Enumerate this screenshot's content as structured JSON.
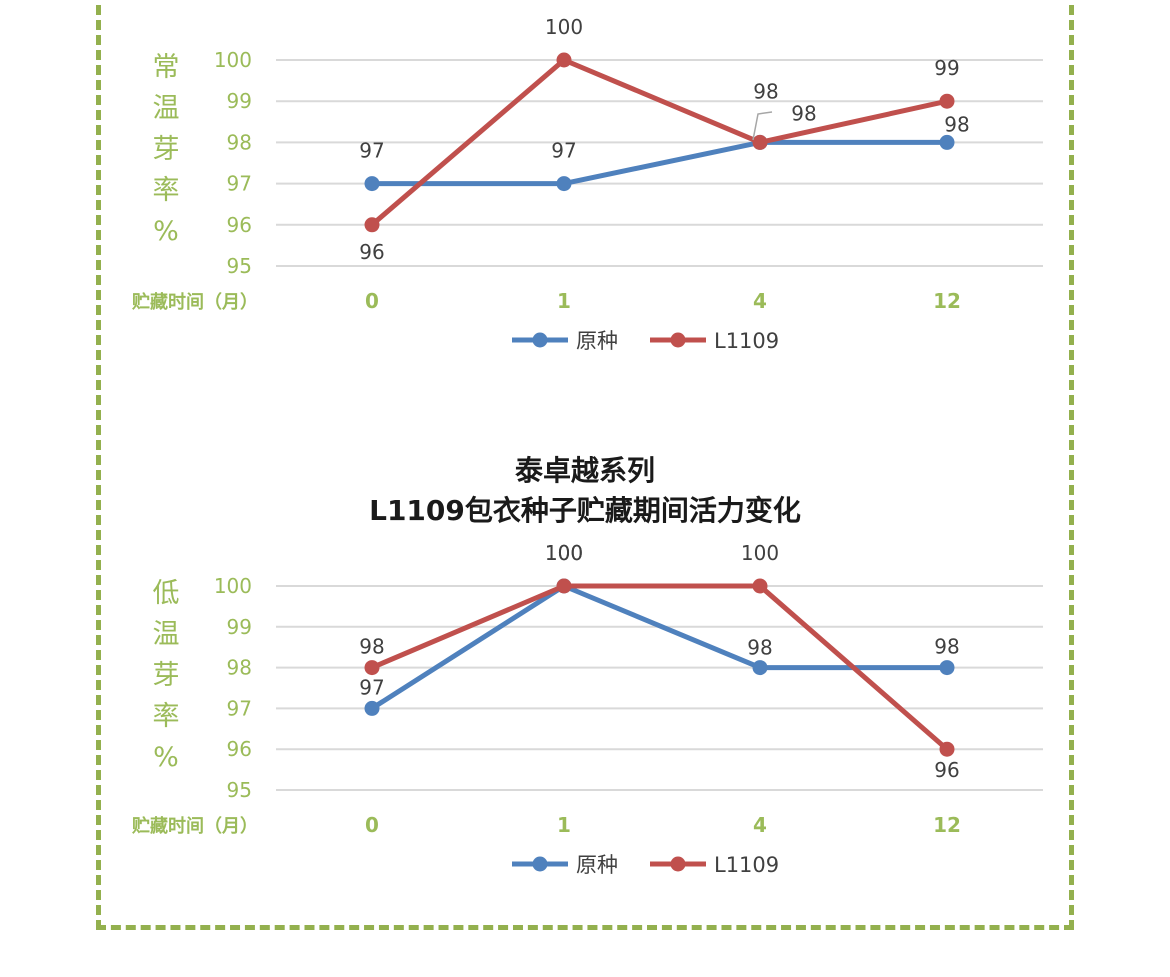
{
  "chart_data": [
    {
      "type": "line",
      "title": "",
      "ylabel": "常温芽率%",
      "xlabel": "贮藏时间（月）",
      "categories": [
        "0",
        "1",
        "4",
        "12"
      ],
      "ylim": [
        95,
        100
      ],
      "yticks": [
        95,
        96,
        97,
        98,
        99,
        100
      ],
      "grid": true,
      "legend": "bottom",
      "series": [
        {
          "name": "原种",
          "color": "#4f81bd",
          "values": [
            97,
            97,
            98,
            98
          ]
        },
        {
          "name": "L1109",
          "color": "#c0504d",
          "values": [
            96,
            100,
            98,
            99
          ]
        }
      ]
    },
    {
      "type": "line",
      "title": "泰卓越系列",
      "subtitle": "L1109包衣种子贮藏期间活力变化",
      "ylabel": "低温芽率%",
      "xlabel": "贮藏时间（月）",
      "categories": [
        "0",
        "1",
        "4",
        "12"
      ],
      "ylim": [
        95,
        100
      ],
      "yticks": [
        95,
        96,
        97,
        98,
        99,
        100
      ],
      "grid": true,
      "legend": "bottom",
      "series": [
        {
          "name": "原种",
          "color": "#4f81bd",
          "values": [
            97,
            100,
            98,
            98
          ]
        },
        {
          "name": "L1109",
          "color": "#c0504d",
          "values": [
            98,
            100,
            100,
            96
          ]
        }
      ]
    }
  ]
}
